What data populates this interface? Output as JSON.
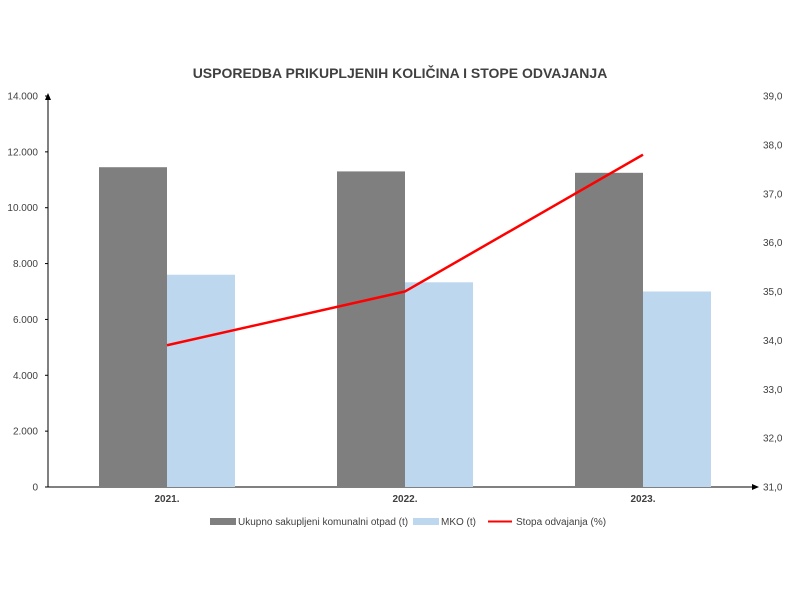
{
  "chart_data": {
    "type": "bar",
    "title": "USPOREDBA PRIKUPLJENIH KOLIČINA I STOPE ODVAJANJA",
    "categories": [
      "2021.",
      "2022.",
      "2023."
    ],
    "series": [
      {
        "name": "Ukupno sakupljeni komunalni otpad (t)",
        "type": "bar",
        "axis": "left",
        "color": "#7f7f7f",
        "values": [
          11450,
          11300,
          11250
        ]
      },
      {
        "name": "MKO (t)",
        "type": "bar",
        "axis": "left",
        "color": "#bdd7ee",
        "values": [
          7600,
          7330,
          7000
        ]
      },
      {
        "name": "Stopa odvajanja (%)",
        "type": "line",
        "axis": "right",
        "color": "#ff0000",
        "values": [
          33.9,
          35.0,
          37.8
        ]
      }
    ],
    "y_left": {
      "min": 0,
      "max": 14000,
      "ticks": [
        "0",
        "2.000",
        "4.000",
        "6.000",
        "8.000",
        "10.000",
        "12.000",
        "14.000"
      ]
    },
    "y_right": {
      "min": 31,
      "max": 39,
      "ticks": [
        "31,0",
        "32,0",
        "33,0",
        "34,0",
        "35,0",
        "36,0",
        "37,0",
        "38,0",
        "39,0"
      ]
    },
    "grid": false,
    "legend_position": "bottom"
  }
}
